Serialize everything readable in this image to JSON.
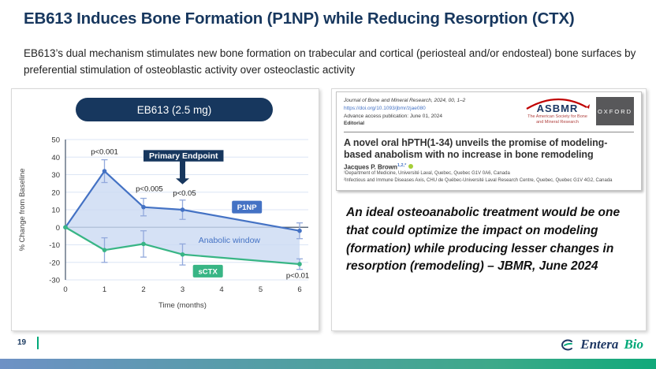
{
  "slide": {
    "title": "EB613 Induces Bone Formation (P1NP) while Reducing Resorption (CTX)",
    "subtitle": "EB613’s dual mechanism stimulates new bone formation on trabecular and cortical (periosteal and/or endosteal) bone surfaces by preferential stimulation of osteoblastic activity over osteoclastic activity"
  },
  "chart_data": {
    "type": "line",
    "title": "EB613 (2.5 mg)",
    "xlabel": "Time (months)",
    "ylabel": "% Change from Baseline",
    "xlim": [
      0,
      6
    ],
    "ylim": [
      -30,
      50
    ],
    "xticks": [
      0,
      1,
      2,
      3,
      4,
      5,
      6
    ],
    "yticks": [
      50,
      40,
      30,
      20,
      10,
      0,
      -10,
      -20,
      -30
    ],
    "grid": true,
    "legend_position": "inline-badges",
    "x": [
      0,
      1,
      2,
      3,
      6
    ],
    "series": [
      {
        "name": "P1NP",
        "color": "#4472C4",
        "values": [
          0,
          32,
          11.5,
          10,
          -2
        ],
        "errors": [
          0,
          6.5,
          5,
          5.5,
          4.5
        ]
      },
      {
        "name": "sCTX",
        "color": "#38B585",
        "values": [
          0,
          -13,
          -9.5,
          -15.5,
          -21
        ],
        "errors": [
          0,
          7,
          7.5,
          6,
          3
        ]
      }
    ],
    "error_bar_color": "#92A9DC",
    "area_fill": "#CBD9F2",
    "area_label": {
      "text": "Anabolic window",
      "x": 4.2,
      "y": -7.5,
      "color": "#4472C4"
    },
    "annotations": [
      {
        "text": "p<0.001",
        "x": 1.0,
        "y": 43
      },
      {
        "text": "p<0.005",
        "x": 2.15,
        "y": 22
      },
      {
        "text": "p<0.05",
        "x": 3.05,
        "y": 19.5
      },
      {
        "text": "p<0.01",
        "x": 5.95,
        "y": -27.5
      }
    ],
    "badges": [
      {
        "text": "P1NP",
        "x": 4.65,
        "y": 11.5,
        "color": "#4472C4"
      },
      {
        "text": "sCTX",
        "x": 3.65,
        "y": -25,
        "color": "#38B585"
      }
    ],
    "primary_endpoint": {
      "label": "Primary Endpoint",
      "x_center": 3,
      "x_left": 2.0,
      "x_right": 4.05,
      "y_top": 44,
      "y_bottom": 37.5,
      "arrow_tip_y": 24.5,
      "color": "#17375E"
    }
  },
  "journal": {
    "citation": "Journal of Bone and Mineral Research, 2024, 00, 1–2",
    "doi": "https://doi.org/10.1093/jbmr/zjae080",
    "advance_access": "Advance access publication: June 01, 2024",
    "article_type": "Editorial",
    "asbmr_name": "ASBMR",
    "asbmr_tagline": "The American Society for Bone and Mineral Research",
    "oxford": "OXFORD",
    "article_title": "A novel oral hPTH(1-34) unveils the promise of modeling-based anabolism with no increase in bone remodeling",
    "author": "Jacques P. Brown",
    "author_sup": "1,2,*",
    "affiliation1": "¹Department of Medicine, Université Laval, Quebec, Quebec G1V 0A6, Canada",
    "affiliation2": "²Infectious and Immune Diseases Axis, CHU de Québec-Université Laval Research Centre, Quebec, Quebec G1V 4G2, Canada",
    "quote": "An ideal osteoanabolic treatment would be one that could optimize the impact on modeling (formation) while producing lesser changes in resorption (remodeling) – JBMR, June 2024"
  },
  "footer": {
    "page_number": "19",
    "brand_name_1": "Entera",
    "brand_name_2": "Bio"
  },
  "colors": {
    "navy": "#17375E",
    "axis_dark": "#44546A",
    "gridline": "#DCE6F5",
    "brand_green": "#00A878",
    "bar_gradient_left": "#6E91C5",
    "bar_gradient_right": "#11A97A"
  }
}
